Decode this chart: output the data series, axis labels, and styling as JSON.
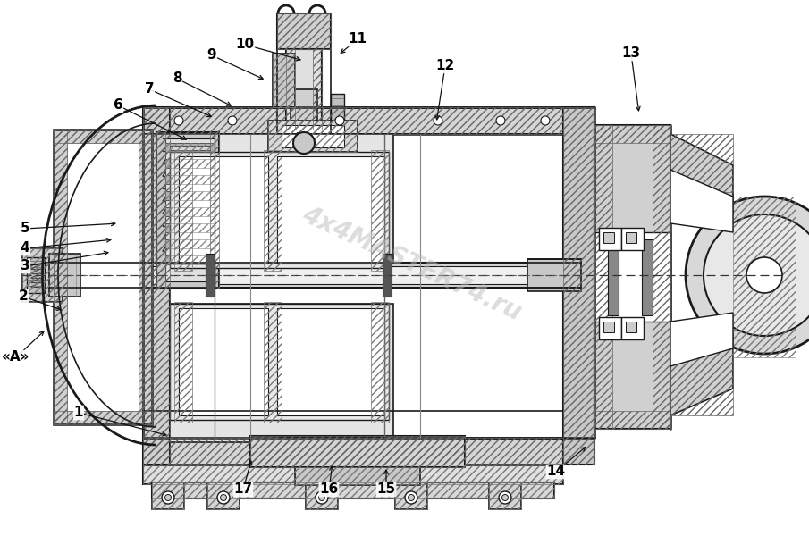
{
  "bg_color": "#ffffff",
  "dc": "#1a1a1a",
  "gray_light": "#e8e8e8",
  "gray_mid": "#c8c8c8",
  "gray_dark": "#888888",
  "gray_hatch": "#555555",
  "watermark_text": "4x4MASTER74.ru",
  "figsize": [
    9.05,
    6.0
  ],
  "dpi": 100,
  "labels": [
    [
      "1",
      88,
      462,
      190,
      488
    ],
    [
      "2",
      26,
      332,
      72,
      348
    ],
    [
      "3",
      28,
      298,
      125,
      282
    ],
    [
      "4",
      28,
      278,
      128,
      268
    ],
    [
      "5",
      28,
      256,
      133,
      250
    ],
    [
      "6",
      132,
      118,
      212,
      158
    ],
    [
      "7",
      167,
      100,
      240,
      132
    ],
    [
      "8",
      198,
      88,
      262,
      120
    ],
    [
      "9",
      237,
      62,
      298,
      90
    ],
    [
      "10",
      274,
      50,
      340,
      68
    ],
    [
      "11",
      400,
      44,
      378,
      62
    ],
    [
      "12",
      498,
      74,
      488,
      138
    ],
    [
      "13",
      706,
      60,
      715,
      128
    ],
    [
      "14",
      622,
      528,
      658,
      498
    ],
    [
      "15",
      432,
      548,
      432,
      522
    ],
    [
      "16",
      368,
      548,
      372,
      518
    ],
    [
      "17",
      272,
      548,
      282,
      512
    ],
    [
      "«A»",
      18,
      400,
      52,
      368
    ]
  ]
}
